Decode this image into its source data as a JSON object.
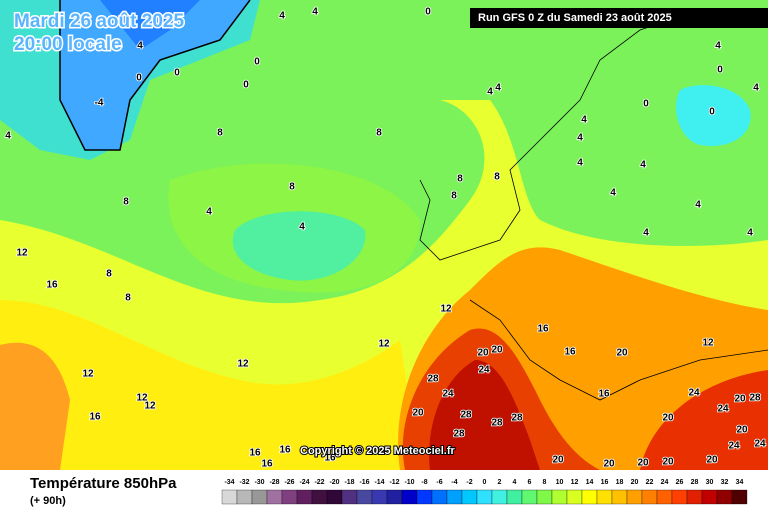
{
  "header": {
    "date": "Mardi 26 août 2025",
    "time": "20:00 locale",
    "run": "Run GFS 0 Z du Samedi 23 août 2025"
  },
  "footer": {
    "title": "Température 850hPa",
    "lead": "(+ 90h)",
    "copyright": "Copyright © 2025 Meteociel.fr"
  },
  "map": {
    "contour_labels": [
      4,
      4,
      0,
      4,
      0,
      0,
      0,
      0,
      -4,
      4,
      4,
      4,
      0,
      0,
      0,
      4,
      4,
      8,
      8,
      4,
      4,
      4,
      4,
      4,
      8,
      8,
      8,
      8,
      8,
      4,
      4,
      4,
      4,
      4,
      12,
      8,
      8,
      16,
      12,
      16,
      16,
      12,
      20,
      20,
      24,
      20,
      12,
      12,
      12,
      28,
      24,
      12,
      12,
      16,
      24,
      24,
      20,
      28,
      20,
      28,
      28,
      28,
      16,
      28,
      20,
      20,
      24,
      24,
      16,
      16,
      16,
      16,
      20,
      20,
      20,
      20,
      20
    ]
  },
  "legend": {
    "values": [
      -34,
      -32,
      -30,
      -28,
      -26,
      -24,
      -22,
      -20,
      -18,
      -16,
      -14,
      -12,
      -10,
      -8,
      -6,
      -4,
      -2,
      0,
      2,
      4,
      6,
      8,
      10,
      12,
      14,
      16,
      18,
      20,
      22,
      24,
      26,
      28,
      30,
      32,
      34
    ],
    "colors": [
      "#d8d8d8",
      "#b8b8b8",
      "#989898",
      "#a070a0",
      "#804080",
      "#602060",
      "#401040",
      "#300838",
      "#503080",
      "#4848a0",
      "#3838b0",
      "#2020a0",
      "#0000c8",
      "#0038ff",
      "#0070ff",
      "#00a0ff",
      "#00c8ff",
      "#30e0ff",
      "#40f0e0",
      "#40f0a0",
      "#60f870",
      "#80f848",
      "#b0ff30",
      "#d8ff20",
      "#ffff00",
      "#ffe000",
      "#ffc000",
      "#ffa000",
      "#ff8000",
      "#ff6000",
      "#ff4000",
      "#e02000",
      "#c00000",
      "#900000",
      "#500000"
    ]
  }
}
